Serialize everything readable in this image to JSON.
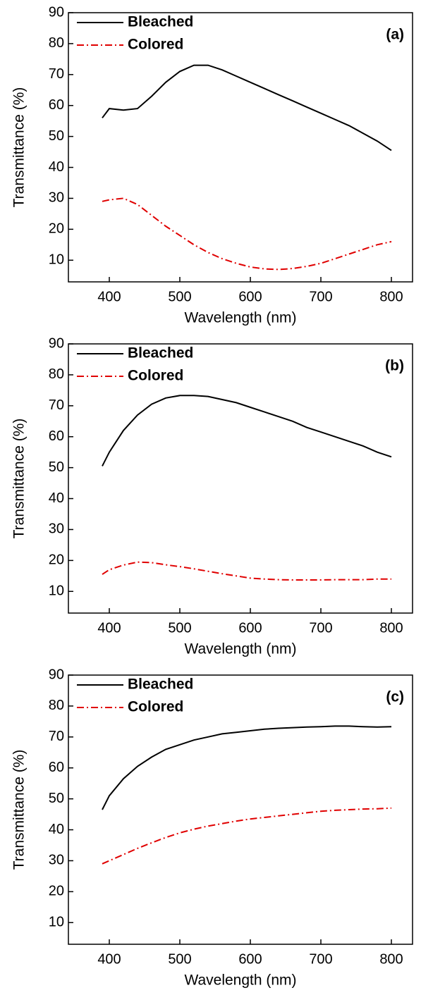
{
  "chart_data": [
    {
      "type": "line",
      "annotation": "(a)",
      "xlabel": "Wavelength (nm)",
      "ylabel": "Transmittance (%)",
      "xlim": [
        342,
        830
      ],
      "ylim": [
        3,
        90
      ],
      "xticks": [
        400,
        500,
        600,
        700,
        800
      ],
      "yticks": [
        10,
        20,
        30,
        40,
        50,
        60,
        70,
        80,
        90
      ],
      "legend": "upper left",
      "x": [
        390,
        400,
        420,
        440,
        460,
        480,
        500,
        520,
        540,
        560,
        580,
        600,
        620,
        640,
        660,
        680,
        700,
        720,
        740,
        760,
        780,
        800
      ],
      "series": [
        {
          "name": "Bleached",
          "color": "#000000",
          "style": "solid",
          "values": [
            56,
            59,
            58.5,
            59,
            63,
            67.5,
            71,
            73,
            73,
            71.5,
            69.5,
            67.5,
            65.5,
            63.5,
            61.5,
            59.5,
            57.5,
            55.5,
            53.5,
            51,
            48.5,
            45.5
          ]
        },
        {
          "name": "Colored",
          "color": "#e00000",
          "style": "dashdot",
          "values": [
            29,
            29.5,
            30,
            28,
            24.5,
            21,
            18,
            15,
            12.5,
            10.5,
            9,
            7.8,
            7.2,
            7,
            7.3,
            8,
            9,
            10.5,
            12,
            13.5,
            15,
            16
          ]
        }
      ]
    },
    {
      "type": "line",
      "annotation": "(b)",
      "xlabel": "Wavelength (nm)",
      "ylabel": "Transmittance (%)",
      "xlim": [
        342,
        830
      ],
      "ylim": [
        3,
        90
      ],
      "xticks": [
        400,
        500,
        600,
        700,
        800
      ],
      "yticks": [
        10,
        20,
        30,
        40,
        50,
        60,
        70,
        80,
        90
      ],
      "legend": "upper left",
      "x": [
        390,
        400,
        420,
        440,
        460,
        480,
        500,
        520,
        540,
        560,
        580,
        600,
        620,
        640,
        660,
        680,
        700,
        720,
        740,
        760,
        780,
        800
      ],
      "series": [
        {
          "name": "Bleached",
          "color": "#000000",
          "style": "solid",
          "values": [
            50.5,
            55,
            62,
            67,
            70.5,
            72.5,
            73.3,
            73.3,
            73,
            72,
            71,
            69.5,
            68,
            66.5,
            65,
            63,
            61.5,
            60,
            58.5,
            57,
            55,
            53.5
          ]
        },
        {
          "name": "Colored",
          "color": "#e00000",
          "style": "dashdot",
          "values": [
            15.5,
            17,
            18.5,
            19.5,
            19.3,
            18.6,
            18,
            17.3,
            16.5,
            15.7,
            15,
            14.3,
            14,
            13.8,
            13.7,
            13.7,
            13.7,
            13.8,
            13.8,
            13.8,
            14,
            14
          ]
        }
      ]
    },
    {
      "type": "line",
      "annotation": "(c)",
      "xlabel": "Wavelength (nm)",
      "ylabel": "Transmittance (%)",
      "xlim": [
        342,
        830
      ],
      "ylim": [
        3,
        90
      ],
      "xticks": [
        400,
        500,
        600,
        700,
        800
      ],
      "yticks": [
        10,
        20,
        30,
        40,
        50,
        60,
        70,
        80,
        90
      ],
      "legend": "upper left",
      "x": [
        390,
        400,
        420,
        440,
        460,
        480,
        500,
        520,
        540,
        560,
        580,
        600,
        620,
        640,
        660,
        680,
        700,
        720,
        740,
        760,
        780,
        800
      ],
      "series": [
        {
          "name": "Bleached",
          "color": "#000000",
          "style": "solid",
          "values": [
            46.5,
            51,
            56.5,
            60.5,
            63.5,
            66,
            67.5,
            69,
            70,
            71,
            71.5,
            72,
            72.5,
            72.8,
            73,
            73.2,
            73.3,
            73.5,
            73.5,
            73.3,
            73.2,
            73.3
          ]
        },
        {
          "name": "Colored",
          "color": "#e00000",
          "style": "dashdot",
          "values": [
            29,
            30,
            32,
            34,
            35.8,
            37.5,
            39,
            40.2,
            41.2,
            42,
            42.8,
            43.5,
            44,
            44.5,
            45,
            45.5,
            46,
            46.3,
            46.5,
            46.7,
            46.8,
            47
          ]
        }
      ]
    }
  ]
}
